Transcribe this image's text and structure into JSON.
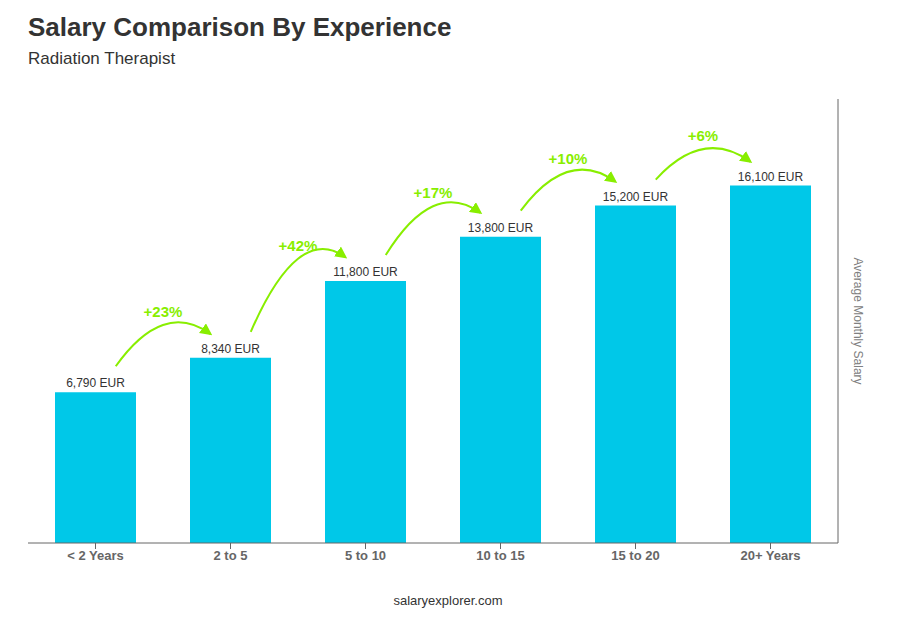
{
  "chart_data": {
    "type": "bar",
    "title": "Salary Comparison By Experience",
    "subtitle": "Radiation Therapist",
    "ylabel": "Average Monthly Salary",
    "categories": [
      "< 2 Years",
      "2 to 5",
      "5 to 10",
      "10 to 15",
      "15 to 20",
      "20+ Years"
    ],
    "values": [
      6790,
      8340,
      11800,
      13800,
      15200,
      16100
    ],
    "value_labels": [
      "6,790 EUR",
      "8,340 EUR",
      "11,800 EUR",
      "13,800 EUR",
      "15,200 EUR",
      "16,100 EUR"
    ],
    "data_labels": true,
    "color": "#00C8E8",
    "ylim": [
      0,
      20000
    ],
    "tick_labels": "x",
    "grid": false,
    "annotations": [
      {
        "text": "+23%",
        "color": "#88EE00"
      },
      {
        "text": "+42%",
        "color": "#88EE00"
      },
      {
        "text": "+17%",
        "color": "#88EE00"
      },
      {
        "text": "+10%",
        "color": "#88EE00"
      },
      {
        "text": "+6%",
        "color": "#88EE00"
      }
    ],
    "footer": "salaryexplorer.com"
  }
}
